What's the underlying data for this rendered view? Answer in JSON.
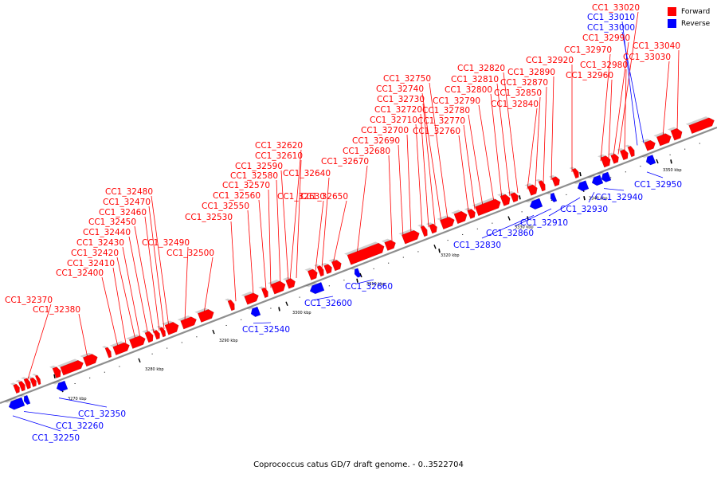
{
  "title": "Coprococcus catus GD/7 draft genome. - 0..3522704",
  "legend": [
    {
      "label": "Forward",
      "color": "#ff0000"
    },
    {
      "label": "Reverse",
      "color": "#0000ff"
    }
  ],
  "colors": {
    "forward": "#ff0000",
    "reverse": "#0000ff",
    "backbone": "#999999"
  },
  "ticks": [
    "3270 kbp",
    "3280 kbp",
    "3290 kbp",
    "3300 kbp",
    "3310 kbp",
    "3320 kbp",
    "3330 kbp",
    "3340 kbp",
    "3350 kbp"
  ],
  "forward_genes": [
    "CC1_32370",
    "CC1_32380",
    "CC1_32400",
    "CC1_32410",
    "CC1_32420",
    "CC1_32430",
    "CC1_32440",
    "CC1_32450",
    "CC1_32460",
    "CC1_32470",
    "CC1_32480",
    "CC1_32490",
    "CC1_32500",
    "CC1_32530",
    "CC1_32550",
    "CC1_32560",
    "CC1_32570",
    "CC1_32580",
    "CC1_32590",
    "CC1_32610",
    "CC1_32620",
    "CC1_32630",
    "CC1_32640",
    "CC1_32650",
    "CC1_32670",
    "CC1_32680",
    "CC1_32690",
    "CC1_32700",
    "CC1_32710",
    "CC1_32720",
    "CC1_32730",
    "CC1_32740",
    "CC1_32750",
    "CC1_32760",
    "CC1_32770",
    "CC1_32780",
    "CC1_32790",
    "CC1_32800",
    "CC1_32810",
    "CC1_32820",
    "CC1_32840",
    "CC1_32850",
    "CC1_32870",
    "CC1_32890",
    "CC1_32920",
    "CC1_32960",
    "CC1_32970",
    "CC1_32980",
    "CC1_32990",
    "CC1_33020",
    "CC1_33030",
    "CC1_33040"
  ],
  "reverse_genes_top": [
    "CC1_33010",
    "CC1_33000"
  ],
  "reverse_genes": [
    "CC1_32250",
    "CC1_32260",
    "CC1_32350",
    "CC1_32540",
    "CC1_32600",
    "CC1_32660",
    "CC1_32830",
    "CC1_32860",
    "CC1_32910",
    "CC1_32930",
    "CC1_32940",
    "CC1_32950"
  ]
}
